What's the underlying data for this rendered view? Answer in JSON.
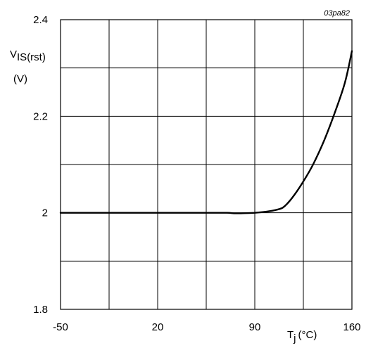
{
  "figure_id": "03pa82",
  "chart_data": {
    "type": "line",
    "title": "",
    "ylabel": {
      "main": "V",
      "subscript": "IS(rst)",
      "unit": "(V)"
    },
    "xlabel": {
      "main": "T",
      "subscript": "j",
      "unit": "(°C)"
    },
    "xlim": [
      -50,
      160
    ],
    "ylim": [
      1.8,
      2.4
    ],
    "x_ticks": [
      -50,
      20,
      90,
      160
    ],
    "x_tick_labels": [
      "-50",
      "20",
      "90",
      "160"
    ],
    "y_ticks": [
      1.8,
      2.0,
      2.2,
      2.4
    ],
    "y_tick_labels": [
      "1.8",
      "2",
      "2.2",
      "2.4"
    ],
    "grid": {
      "x_lines": [
        -50,
        -15,
        20,
        55,
        90,
        125,
        160
      ],
      "y_lines": [
        1.8,
        1.9,
        2.0,
        2.1,
        2.2,
        2.3,
        2.4
      ]
    },
    "series": [
      {
        "x": [
          -50,
          -20,
          20,
          55,
          70,
          75,
          80,
          90,
          100,
          108,
          112,
          118,
          125,
          132,
          140,
          148,
          155,
          160
        ],
        "y": [
          2.0,
          2.0,
          2.0,
          2.0,
          2.0,
          1.999,
          1.999,
          2.0,
          2.003,
          2.008,
          2.015,
          2.035,
          2.065,
          2.1,
          2.15,
          2.21,
          2.27,
          2.335
        ]
      }
    ]
  }
}
